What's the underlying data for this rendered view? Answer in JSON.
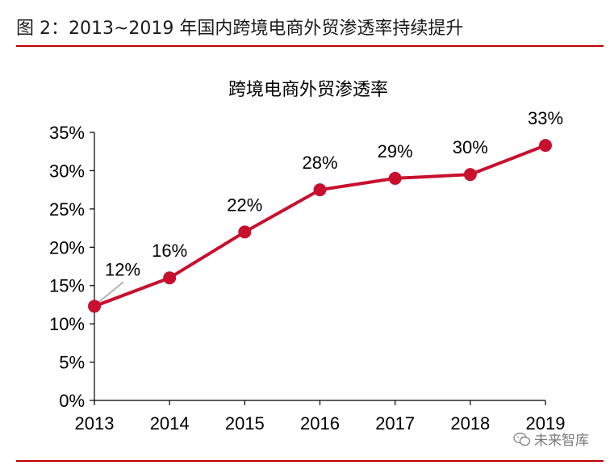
{
  "header": {
    "figure_title": "图 2：2013~2019 年国内跨境电商外贸渗透率持续提升"
  },
  "watermark": {
    "text": "未来智库",
    "logo_icon": "wechat-logo-icon"
  },
  "colors": {
    "accent": "#c8102e",
    "rule": "#c00000"
  },
  "chart_data": {
    "type": "line",
    "title": "跨境电商外贸渗透率",
    "xlabel": "",
    "ylabel": "",
    "categories": [
      "2013",
      "2014",
      "2015",
      "2016",
      "2017",
      "2018",
      "2019"
    ],
    "series": [
      {
        "values": [
          12.3,
          16.0,
          22.0,
          27.5,
          29.0,
          29.5,
          33.3
        ],
        "labels": [
          "12%",
          "16%",
          "22%",
          "28%",
          "29%",
          "30%",
          "33%"
        ]
      }
    ],
    "ylim": [
      0,
      35
    ],
    "yticks": [
      "0%",
      "5%",
      "10%",
      "15%",
      "20%",
      "25%",
      "30%",
      "35%"
    ],
    "ytick_values": [
      0,
      5,
      10,
      15,
      20,
      25,
      30,
      35
    ],
    "grid": false,
    "legend": "none"
  }
}
